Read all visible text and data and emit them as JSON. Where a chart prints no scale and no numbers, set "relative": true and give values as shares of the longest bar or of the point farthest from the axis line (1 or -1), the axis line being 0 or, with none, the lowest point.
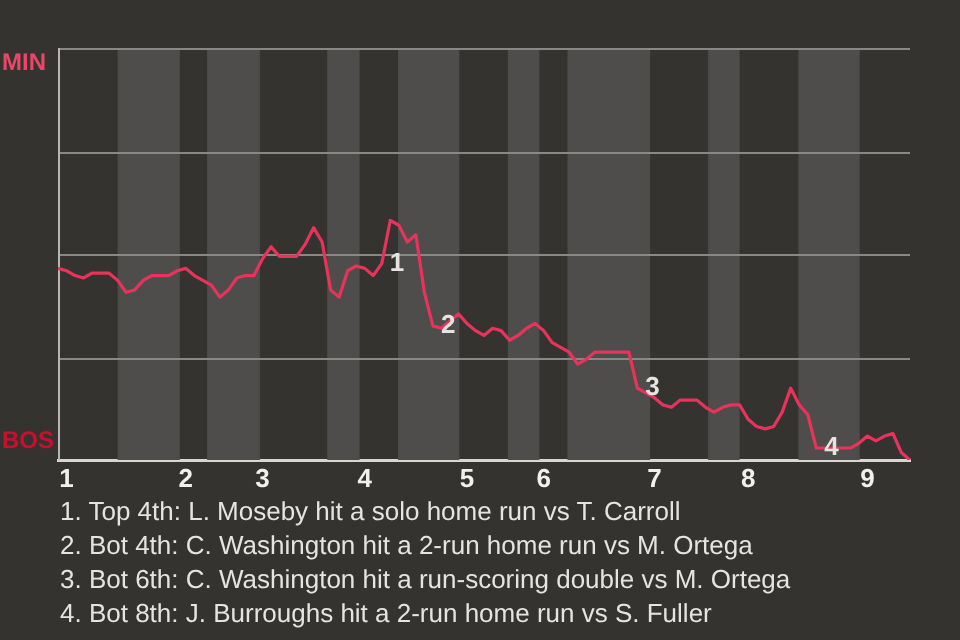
{
  "chart_data": {
    "type": "line",
    "relative": true,
    "categories": [
      null,
      "1",
      null,
      null,
      null,
      null,
      null,
      null,
      null,
      null,
      null,
      null,
      null,
      null,
      null,
      "2",
      null,
      null,
      null,
      null,
      null,
      null,
      null,
      null,
      "3",
      null,
      null,
      null,
      null,
      null,
      null,
      null,
      null,
      null,
      null,
      null,
      "4",
      null,
      null,
      null,
      null,
      null,
      null,
      null,
      null,
      null,
      null,
      null,
      "5",
      null,
      null,
      null,
      null,
      null,
      null,
      null,
      null,
      "6",
      null,
      null,
      null,
      null,
      null,
      null,
      null,
      null,
      null,
      null,
      null,
      null,
      "7",
      null,
      null,
      null,
      null,
      null,
      null,
      null,
      null,
      null,
      null,
      "8",
      null,
      null,
      null,
      null,
      null,
      null,
      null,
      null,
      null,
      null,
      null,
      null,
      null,
      "9",
      null,
      null,
      null,
      null,
      null
    ],
    "series": [
      {
        "color": "#e8335a",
        "values": [
          0.8,
          0.79,
          0.77,
          0.76,
          0.78,
          0.78,
          0.78,
          0.75,
          0.7,
          0.71,
          0.75,
          0.77,
          0.77,
          0.77,
          0.79,
          0.8,
          0.77,
          0.75,
          0.73,
          0.68,
          0.71,
          0.76,
          0.77,
          0.77,
          0.84,
          0.89,
          0.85,
          0.85,
          0.85,
          0.9,
          0.97,
          0.91,
          0.71,
          0.68,
          0.79,
          0.81,
          0.8,
          0.77,
          0.82,
          1,
          0.98,
          0.91,
          0.94,
          0.7,
          0.56,
          0.55,
          0.58,
          0.61,
          0.57,
          0.54,
          0.52,
          0.55,
          0.54,
          0.5,
          0.52,
          0.55,
          0.57,
          0.54,
          0.49,
          0.47,
          0.45,
          0.4,
          0.42,
          0.45,
          0.45,
          0.45,
          0.45,
          0.45,
          0.3,
          0.28,
          0.26,
          0.23,
          0.22,
          0.25,
          0.25,
          0.25,
          0.22,
          0.2,
          0.22,
          0.23,
          0.23,
          0.17,
          0.14,
          0.13,
          0.14,
          0.2,
          0.3,
          0.23,
          0.19,
          0.05,
          0.05,
          0.05,
          0.05,
          0.05,
          0.07,
          0.1,
          0.08,
          0.1,
          0.11,
          0.03,
          0
        ]
      }
    ],
    "legend": false,
    "marker": "none",
    "ref_lines": [
      {
        "axis": "y",
        "value": 0.43,
        "color": "#8a8886"
      },
      {
        "axis": "y",
        "value": 0.86,
        "color": "#8a8886"
      },
      {
        "axis": "y",
        "value": 1.29,
        "color": "#8a8886"
      },
      {
        "axis": "y",
        "value": 1.72,
        "color": "#8a8886"
      }
    ],
    "annotations": [
      "MIN",
      "BOS",
      {
        "text": "1",
        "y": 0.82
      },
      {
        "text": "2",
        "y": 0.56
      },
      {
        "text": "3",
        "y": 0.3
      },
      {
        "text": "4",
        "y": 0.05
      },
      "1. Top 4th: L. Moseby hit a solo home run vs T. Carroll",
      "2. Bot 4th: C. Washington hit a 2-run home run vs M. Ortega",
      "3. Bot 6th: C. Washington hit a run-scoring double vs M. Ortega",
      "4. Bot 8th: J. Burroughs hit a 2-run home run vs S. Fuller"
    ]
  }
}
